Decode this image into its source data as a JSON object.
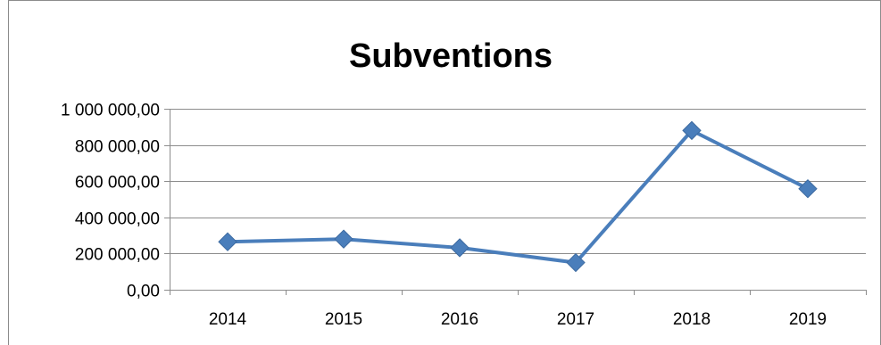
{
  "chart_data": {
    "type": "line",
    "title": "Subventions",
    "xlabel": "",
    "ylabel": "",
    "categories": [
      "2014",
      "2015",
      "2016",
      "2017",
      "2018",
      "2019"
    ],
    "series": [
      {
        "values": [
          265000,
          280000,
          232000,
          150000,
          880000,
          558000
        ],
        "color": "#4a7ebb",
        "marker": "diamond"
      }
    ],
    "ylim": [
      0,
      1000000
    ],
    "yticks": [
      0,
      200000,
      400000,
      600000,
      800000,
      1000000
    ],
    "ytick_labels": [
      "0,00",
      "200 000,00",
      "400 000,00",
      "600 000,00",
      "800 000,00",
      "1 000 000,00"
    ],
    "grid": true,
    "legend": "none"
  }
}
